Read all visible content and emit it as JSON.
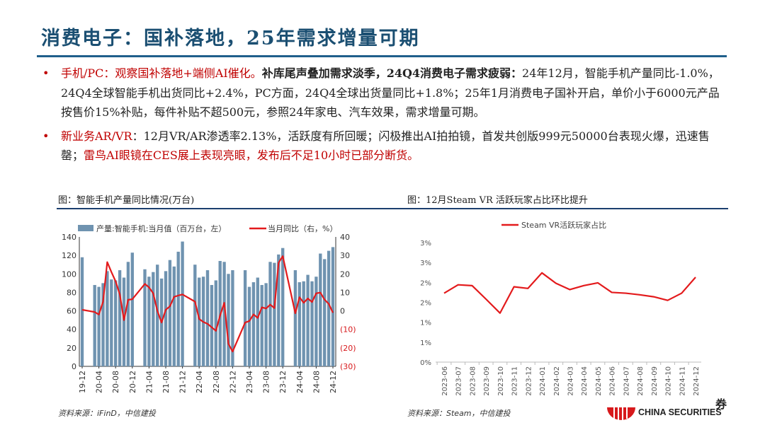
{
  "title": "消费电子：国补落地，25年需求增量可期",
  "bullets": [
    {
      "lead": "手机/PC：观察国补落地+端侧AI催化。",
      "bold_part": "补库尾声叠加需求淡季，24Q4消费电子需求疲弱：",
      "rest": "24年12月，智能手机产量同比-1.0%，24Q4全球智能手机出货同比+2.4%，PC方面，24Q4全球出货量同比+1.8%；25年1月消费电子国补开启，单价小于6000元产品按售价15%补贴，每件补贴不超500元，参照24年家电、汽车效果，需求增量可期。"
    },
    {
      "lead": "新业务AR/VR",
      "rest": "：12月VR/AR渗透率2.13%，活跃度有所回暖；闪极推出AI拍拍镜，首发共创版999元50000台表现火爆，迅速售罄；",
      "red_tail": "雷鸟AI眼镜在CES展上表现亮眼，发布后不足10小时已部分断货。"
    }
  ],
  "captions": {
    "left": "图：智能手机产量同比情况(万台)",
    "right": "图：12月Steam VR 活跃玩家占比环比提升"
  },
  "sources": {
    "left": "资料来源：iFinD，中信建投",
    "right": "资料来源：Steam，中信建投"
  },
  "logo": {
    "text": "CHINA SECURITIES",
    "char": "券"
  },
  "colors": {
    "bar": "#6f93b0",
    "line": "#e31a1c",
    "title": "#1b4f72"
  },
  "chart_data": [
    {
      "type": "bar+line",
      "legend": [
        "产量:智能手机:当月值（百万台，左）",
        "当月同比（右，%）"
      ],
      "legend_placement": "top",
      "x": [
        "19-12",
        "20-03",
        "20-04",
        "20-05",
        "20-06",
        "20-07",
        "20-08",
        "20-09",
        "20-10",
        "20-11",
        "20-12",
        "21-03",
        "21-04",
        "21-05",
        "21-06",
        "21-07",
        "21-08",
        "21-09",
        "21-10",
        "21-11",
        "21-12",
        "22-03",
        "22-04",
        "22-05",
        "22-06",
        "22-07",
        "22-08",
        "22-09",
        "22-10",
        "22-11",
        "22-12",
        "23-03",
        "23-04",
        "23-05",
        "23-06",
        "23-07",
        "23-08",
        "23-09",
        "23-10",
        "23-11",
        "23-12",
        "24-03",
        "24-04",
        "24-05",
        "24-06",
        "24-07",
        "24-08",
        "24-09",
        "24-10",
        "24-11",
        "24-12"
      ],
      "x_tick_labels": [
        "19-12",
        "20-04",
        "20-08",
        "20-12",
        "21-04",
        "21-08",
        "21-12",
        "22-04",
        "22-08",
        "22-12",
        "23-04",
        "23-08",
        "23-12",
        "24-04",
        "24-08",
        "24-12"
      ],
      "series": [
        {
          "name": "产量:智能手机:当月值（百万台，左）",
          "axis": "left",
          "type": "bar",
          "values": [
            118,
            88,
            86,
            90,
            103,
            94,
            93,
            104,
            96,
            113,
            123,
            105,
            97,
            102,
            110,
            95,
            103,
            115,
            108,
            124,
            135,
            110,
            96,
            97,
            104,
            88,
            93,
            114,
            113,
            100,
            104,
            104,
            86,
            91,
            96,
            88,
            90,
            113,
            112,
            121,
            128,
            104,
            91,
            92,
            99,
            92,
            97,
            122,
            116,
            125,
            129
          ]
        },
        {
          "name": "当月同比（右，%）",
          "axis": "right",
          "type": "line",
          "values": [
            0.6,
            -0.6,
            -2,
            5,
            26.4,
            21,
            16,
            9,
            -5,
            6,
            6.3,
            14.6,
            12.7,
            9.5,
            0,
            -6.3,
            0.6,
            2.5,
            7.6,
            8.3,
            8.9,
            5,
            -4.4,
            -6,
            -7,
            -8.9,
            -10.8,
            -2.5,
            4.4,
            -17.8,
            -22,
            -6.3,
            -5.5,
            -1.9,
            -3.8,
            1.9,
            1.3,
            3.4,
            1.5,
            26,
            29.6,
            -1.3,
            7.4,
            4.4,
            6.7,
            4.8,
            9.5,
            9.9,
            6.1,
            3.8,
            -1.0
          ]
        }
      ],
      "left_ylim": [
        0,
        140
      ],
      "left_ticks": [
        "0",
        "20",
        "40",
        "60",
        "80",
        "100",
        "120",
        "140"
      ],
      "right_ylim": [
        -30,
        40
      ],
      "right_ticks": [
        "(30)",
        "(20)",
        "(10)",
        "0",
        "10",
        "20",
        "30",
        "40"
      ]
    },
    {
      "type": "line",
      "legend": [
        "Steam VR活跃玩家占比"
      ],
      "legend_placement": "top",
      "categories": [
        "2023-06",
        "2023-07",
        "2023-08",
        "2023-09",
        "2023-10",
        "2023-11",
        "2023-12",
        "2024-01",
        "2024-02",
        "2024-03",
        "2024-04",
        "2024-05",
        "2024-06",
        "2024-07",
        "2024-08",
        "2024-09",
        "2024-10",
        "2024-11",
        "2024-12"
      ],
      "series": [
        {
          "name": "Steam VR活跃玩家占比",
          "values": [
            1.73,
            1.94,
            1.92,
            1.58,
            1.23,
            1.89,
            1.85,
            2.24,
            1.98,
            1.82,
            1.92,
            1.99,
            1.75,
            1.73,
            1.69,
            1.64,
            1.55,
            1.73,
            2.13
          ]
        }
      ],
      "ylim": [
        0,
        3
      ],
      "y_ticks": [
        "0%",
        "1%",
        "1%",
        "2%",
        "2%",
        "3%",
        "3%"
      ],
      "grid": false
    }
  ]
}
